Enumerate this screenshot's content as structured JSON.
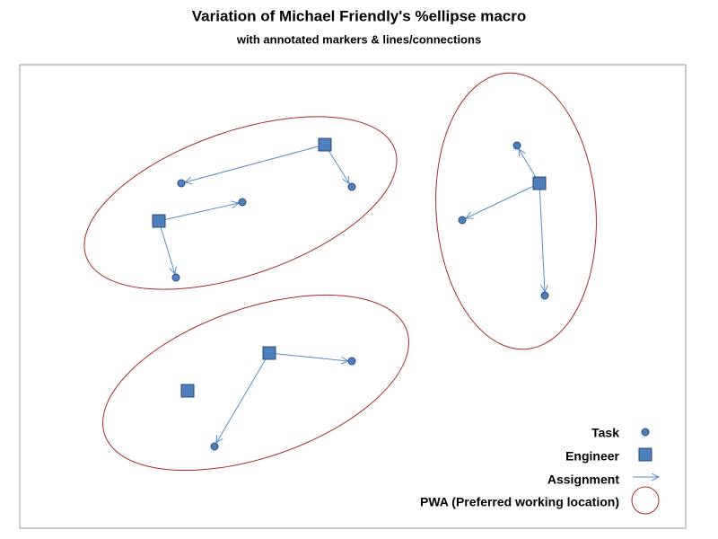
{
  "header": {
    "title": "Variation of Michael Friendly's %ellipse macro",
    "subtitle": "with annotated markers & lines/connections"
  },
  "legend": {
    "items": [
      "Task",
      "Engineer",
      "Assignment",
      "PWA (Preferred working location)"
    ]
  }
}
